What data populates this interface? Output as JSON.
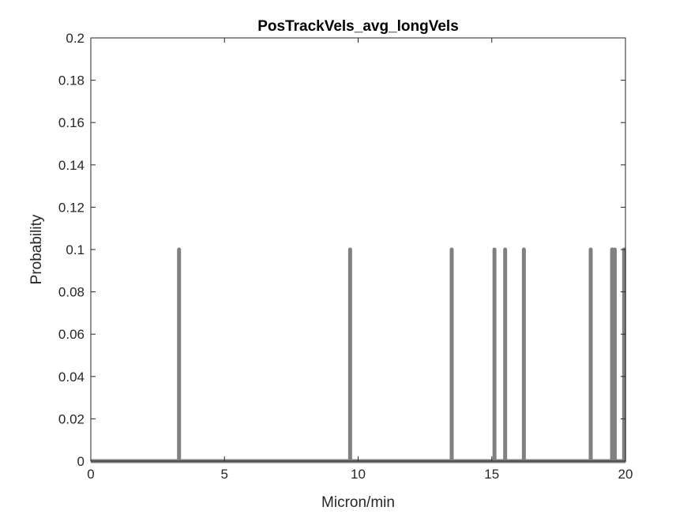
{
  "chart_data": {
    "type": "stem",
    "title": "PosTrackVels_avg_longVels",
    "xlabel": "Micron/min",
    "ylabel": "Probability",
    "xlim": [
      0,
      20
    ],
    "ylim": [
      0,
      0.2
    ],
    "xticks": [
      0,
      5,
      10,
      15,
      20
    ],
    "xtick_labels": [
      "0",
      "5",
      "10",
      "15",
      "20"
    ],
    "yticks": [
      0,
      0.02,
      0.04,
      0.06,
      0.08,
      0.1,
      0.12,
      0.14,
      0.16,
      0.18,
      0.2
    ],
    "ytick_labels": [
      "0",
      "0.02",
      "0.04",
      "0.06",
      "0.08",
      "0.1",
      "0.12",
      "0.14",
      "0.16",
      "0.18",
      "0.2"
    ],
    "grid": false,
    "series": [
      {
        "color": "#808080",
        "x": [
          3.3,
          9.7,
          13.5,
          15.1,
          15.5,
          16.2,
          18.7,
          19.5,
          19.6,
          19.95
        ],
        "y": [
          0.1,
          0.1,
          0.1,
          0.1,
          0.1,
          0.1,
          0.1,
          0.1,
          0.1,
          0.1
        ]
      }
    ]
  }
}
